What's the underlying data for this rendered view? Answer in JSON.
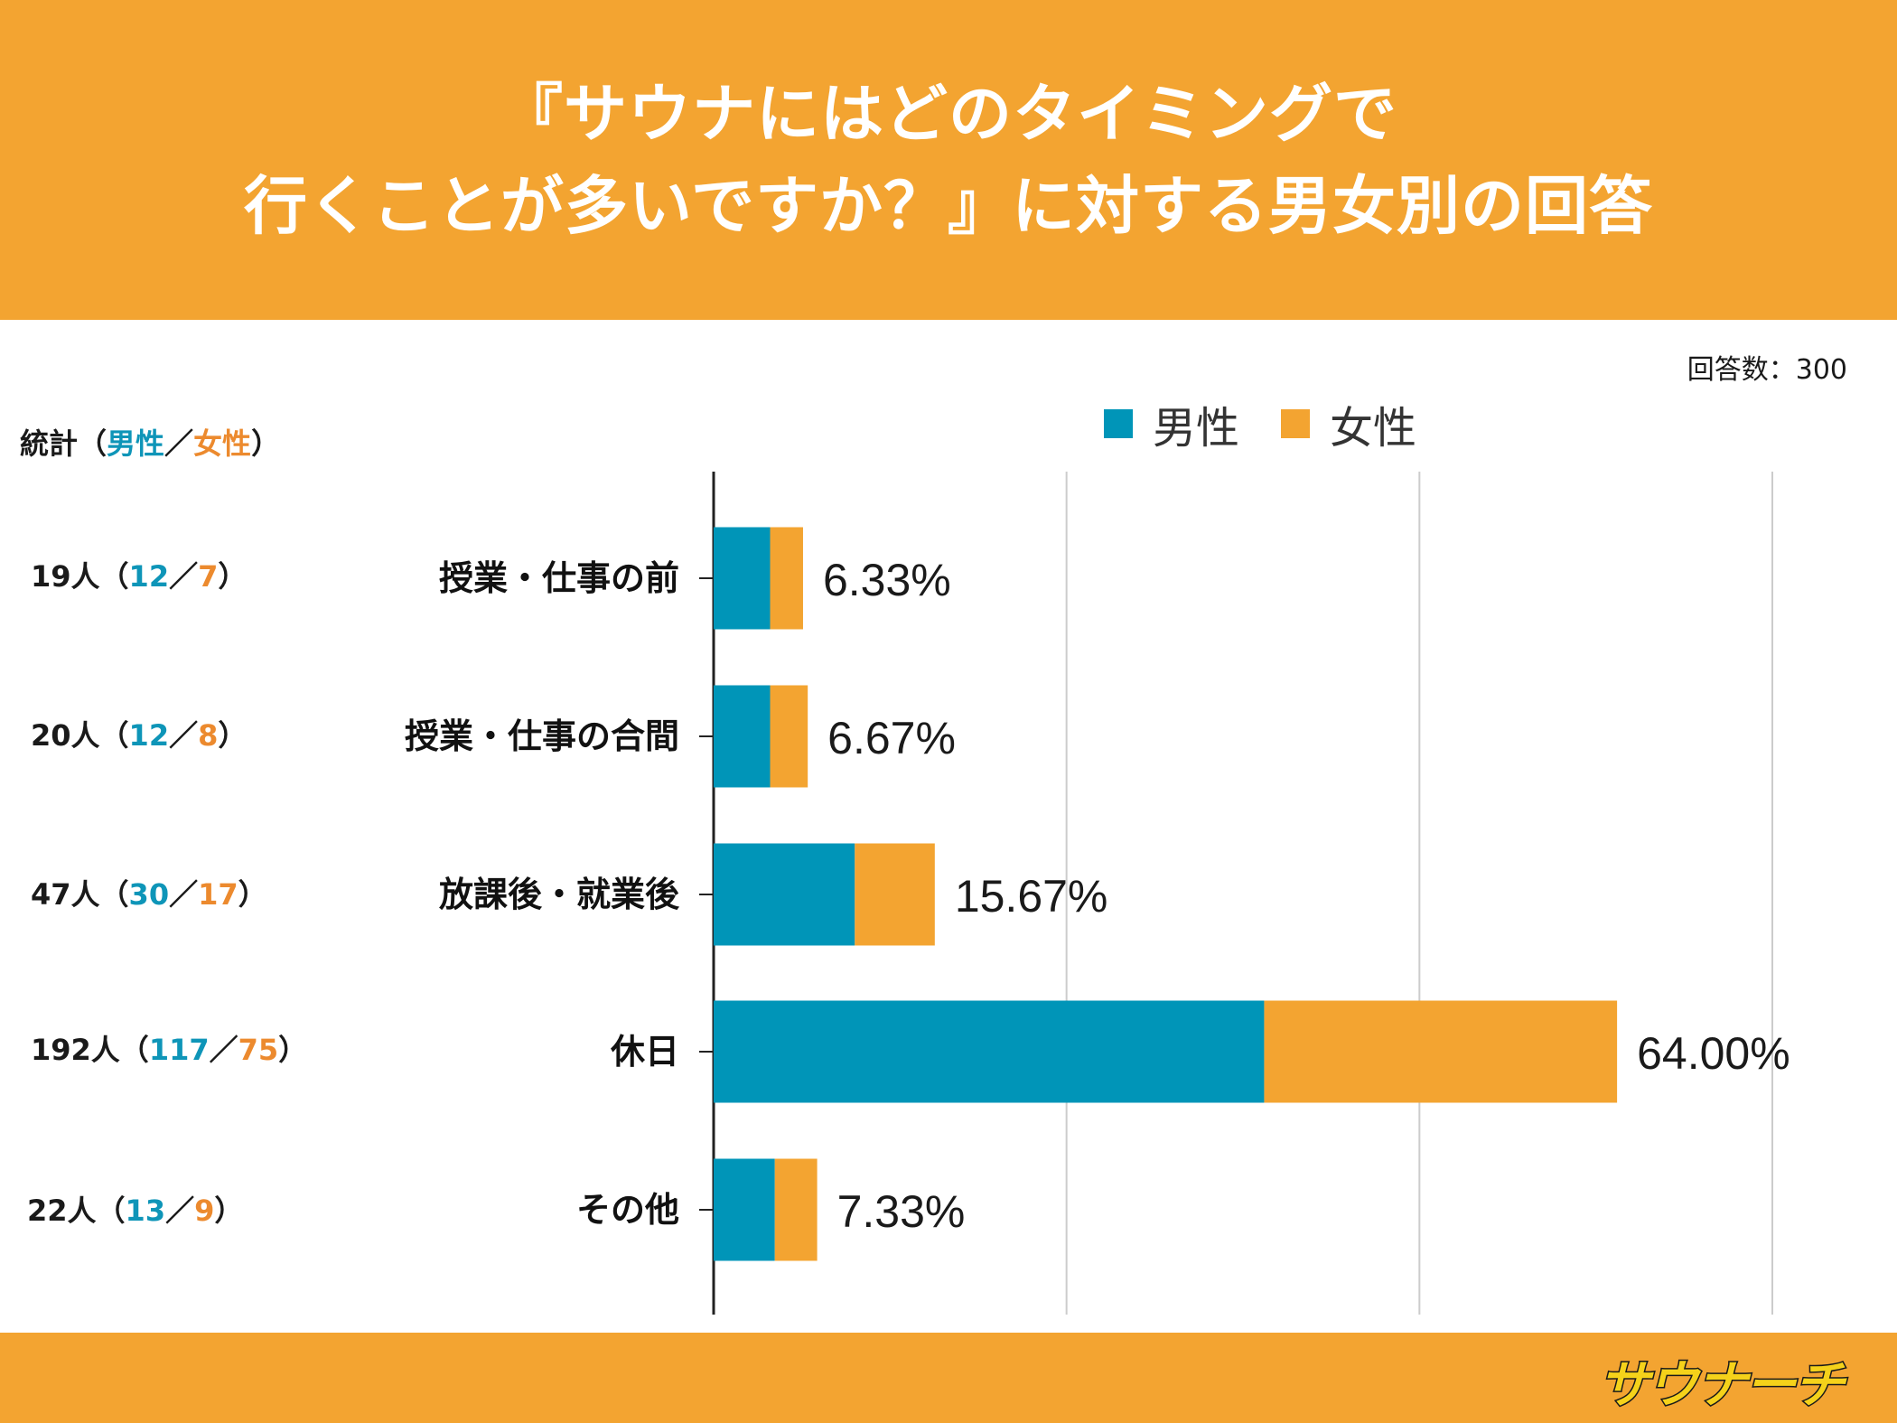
{
  "header": {
    "title_line1": "『サウナにはどのタイミングで",
    "title_line2": "行くことが多いですか？』に対する男女別の回答"
  },
  "response_count": "回答数：300",
  "stats": {
    "label": "統計（",
    "male_label": "男性",
    "separator": "／",
    "female_label": "女性",
    "close": "）",
    "rows": [
      {
        "total": "19人（",
        "male": "12",
        "sep": "／",
        "female": "7",
        "close": "）"
      },
      {
        "total": "20人（",
        "male": "12",
        "sep": "／",
        "female": "8",
        "close": "）"
      },
      {
        "total": "47人（",
        "male": "30",
        "sep": "／",
        "female": "17",
        "close": "）"
      },
      {
        "total": "192人（",
        "male": "117",
        "sep": "／",
        "female": "75",
        "close": "）"
      },
      {
        "total": "22人（",
        "male": "13",
        "sep": "／",
        "female": "9",
        "close": "）"
      }
    ]
  },
  "legend": {
    "male": "男性",
    "female": "女性"
  },
  "colors": {
    "male": "#0095B8",
    "female": "#F3A431",
    "male_text": "#0E95B8",
    "female_text": "#EC8A2E",
    "grid": "#cccccc"
  },
  "chart_data": {
    "type": "bar",
    "orientation": "horizontal",
    "stacked": true,
    "categories": [
      "授業・仕事の前",
      "授業・仕事の合間",
      "放課後・就業後",
      "休日",
      "その他"
    ],
    "series": [
      {
        "name": "男性",
        "values": [
          12,
          12,
          30,
          117,
          13
        ]
      },
      {
        "name": "女性",
        "values": [
          7,
          8,
          17,
          75,
          9
        ]
      }
    ],
    "data_labels": [
      "6.33%",
      "6.67%",
      "15.67%",
      "64.00%",
      "7.33%"
    ],
    "xlim": [
      0,
      225
    ],
    "x_gridlines": [
      75,
      150,
      225
    ],
    "legend_position": "top"
  },
  "logo": {
    "name": "サウナーチ"
  }
}
